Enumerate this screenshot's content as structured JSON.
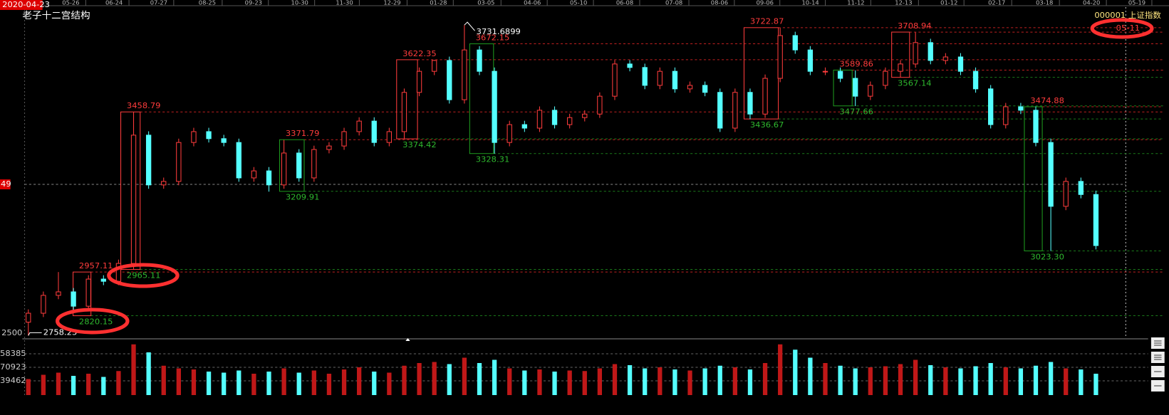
{
  "chart_data": {
    "type": "candlestick",
    "title": "老子十二宫结构",
    "symbol": "000001 上证指数",
    "current_date": "2020-04-23",
    "marker_date": "05-11",
    "date_labels": [
      "05-26",
      "06-24",
      "07-27",
      "08-25",
      "09-23",
      "10-30",
      "11-30",
      "12-29",
      "01-28",
      "03-05",
      "04-06",
      "05-10",
      "06-08",
      "07-08",
      "08-06",
      "09-06",
      "10-14",
      "11-12",
      "12-13",
      "01-12",
      "02-17",
      "03-18",
      "04-20",
      "05-19"
    ],
    "left_labels": [
      "49",
      "2500"
    ],
    "volume_labels": [
      "58385",
      "70923",
      "39462"
    ],
    "ylim": [
      2750,
      3776
    ],
    "volume_ylim": [
      0,
      100
    ],
    "up_color": "#ff3c3c",
    "down_color": "#54ffff",
    "open": [
      2800,
      2828,
      2884,
      2895,
      2850,
      2935,
      2928,
      2984,
      3386,
      3230,
      3241,
      3363,
      3397,
      3375,
      3363,
      3252,
      3274,
      3230,
      3330,
      3252,
      3341,
      3352,
      3397,
      3430,
      3363,
      3397,
      3520,
      3586,
      3620,
      3497,
      3653,
      3586,
      3363,
      3419,
      3408,
      3464,
      3419,
      3441,
      3452,
      3508,
      3609,
      3598,
      3542,
      3586,
      3531,
      3542,
      3520,
      3408,
      3520,
      3452,
      3564,
      3698,
      3653,
      3586,
      3586,
      3564,
      3508,
      3542,
      3586,
      3609,
      3676,
      3620,
      3631,
      3586,
      3531,
      3419,
      3475,
      3464,
      3363,
      3163,
      3241,
      3200
    ],
    "high": [
      2840,
      2896,
      2957,
      2907,
      2947,
      2947,
      2996,
      3458,
      3398,
      3253,
      3375,
      3409,
      3409,
      3387,
      3375,
      3286,
      3286,
      3371,
      3342,
      3353,
      3364,
      3409,
      3442,
      3442,
      3409,
      3532,
      3598,
      3622,
      3632,
      3731,
      3665,
      3598,
      3431,
      3431,
      3476,
      3476,
      3453,
      3464,
      3520,
      3621,
      3621,
      3610,
      3598,
      3598,
      3554,
      3554,
      3532,
      3532,
      3532,
      3576,
      3722,
      3710,
      3665,
      3598,
      3598,
      3589,
      3554,
      3598,
      3621,
      3708,
      3688,
      3643,
      3643,
      3598,
      3543,
      3487,
      3487,
      3476,
      3375,
      3253,
      3253,
      3212
    ],
    "low": [
      2758,
      2816,
      2872,
      2838,
      2838,
      2916,
      2916,
      2965,
      3218,
      3218,
      3229,
      3351,
      3363,
      3351,
      3240,
      3240,
      3209,
      3218,
      3240,
      3240,
      3329,
      3340,
      3385,
      3351,
      3351,
      3374,
      3508,
      3574,
      3485,
      3485,
      3574,
      3328,
      3351,
      3396,
      3396,
      3407,
      3407,
      3429,
      3440,
      3496,
      3586,
      3530,
      3530,
      3519,
      3519,
      3508,
      3396,
      3396,
      3436,
      3440,
      3552,
      3641,
      3574,
      3574,
      3552,
      3477,
      3496,
      3530,
      3567,
      3597,
      3608,
      3608,
      3574,
      3519,
      3407,
      3407,
      3452,
      3351,
      3023,
      3151,
      3188,
      3028
    ],
    "close": [
      2828,
      2884,
      2895,
      2850,
      2935,
      2928,
      2984,
      3386,
      3230,
      3241,
      3363,
      3397,
      3375,
      3363,
      3252,
      3274,
      3230,
      3330,
      3252,
      3341,
      3352,
      3397,
      3430,
      3363,
      3397,
      3520,
      3586,
      3620,
      3497,
      3653,
      3586,
      3363,
      3419,
      3408,
      3464,
      3419,
      3441,
      3452,
      3508,
      3609,
      3598,
      3542,
      3586,
      3531,
      3542,
      3520,
      3408,
      3520,
      3452,
      3564,
      3698,
      3653,
      3586,
      3586,
      3564,
      3508,
      3542,
      3586,
      3609,
      3676,
      3620,
      3631,
      3586,
      3531,
      3419,
      3475,
      3464,
      3363,
      3163,
      3241,
      3200,
      3040
    ],
    "volume": [
      30,
      38,
      42,
      36,
      40,
      34,
      45,
      95,
      80,
      55,
      50,
      48,
      44,
      42,
      46,
      40,
      44,
      50,
      42,
      46,
      40,
      48,
      52,
      44,
      42,
      55,
      60,
      62,
      58,
      70,
      60,
      66,
      50,
      46,
      48,
      44,
      46,
      45,
      50,
      58,
      56,
      50,
      52,
      48,
      46,
      50,
      55,
      52,
      48,
      60,
      95,
      85,
      70,
      60,
      55,
      50,
      52,
      54,
      58,
      66,
      56,
      52,
      50,
      54,
      60,
      52,
      50,
      55,
      62,
      50,
      48,
      40
    ],
    "peak_label": "3731.6899",
    "low_label": "2758.25",
    "boxes": [
      {
        "color": "#ff3c3c",
        "high": 2957.11,
        "low": 2820.15
      },
      {
        "color": "#ff3c3c",
        "high": 3458.79,
        "low": 2965.11
      },
      {
        "color": "#1e9a1e",
        "high": 3371.79,
        "low": 3209.91
      },
      {
        "color": "#ff3c3c",
        "high": 3622.35,
        "low": 3374.42
      },
      {
        "color": "#1e9a1e",
        "high": 3672.15,
        "low": 3328.31
      },
      {
        "color": "#ff3c3c",
        "high": 3722.87,
        "low": 3436.67
      },
      {
        "color": "#1e9a1e",
        "high": 3589.86,
        "low": 3477.66
      },
      {
        "color": "#ff3c3c",
        "high": 3708.94,
        "low": 3567.14
      },
      {
        "color": "#1e9a1e",
        "high": 3474.88,
        "low": {
          "value": 3023.3,
          "label": "3023.30"
        }
      }
    ]
  }
}
